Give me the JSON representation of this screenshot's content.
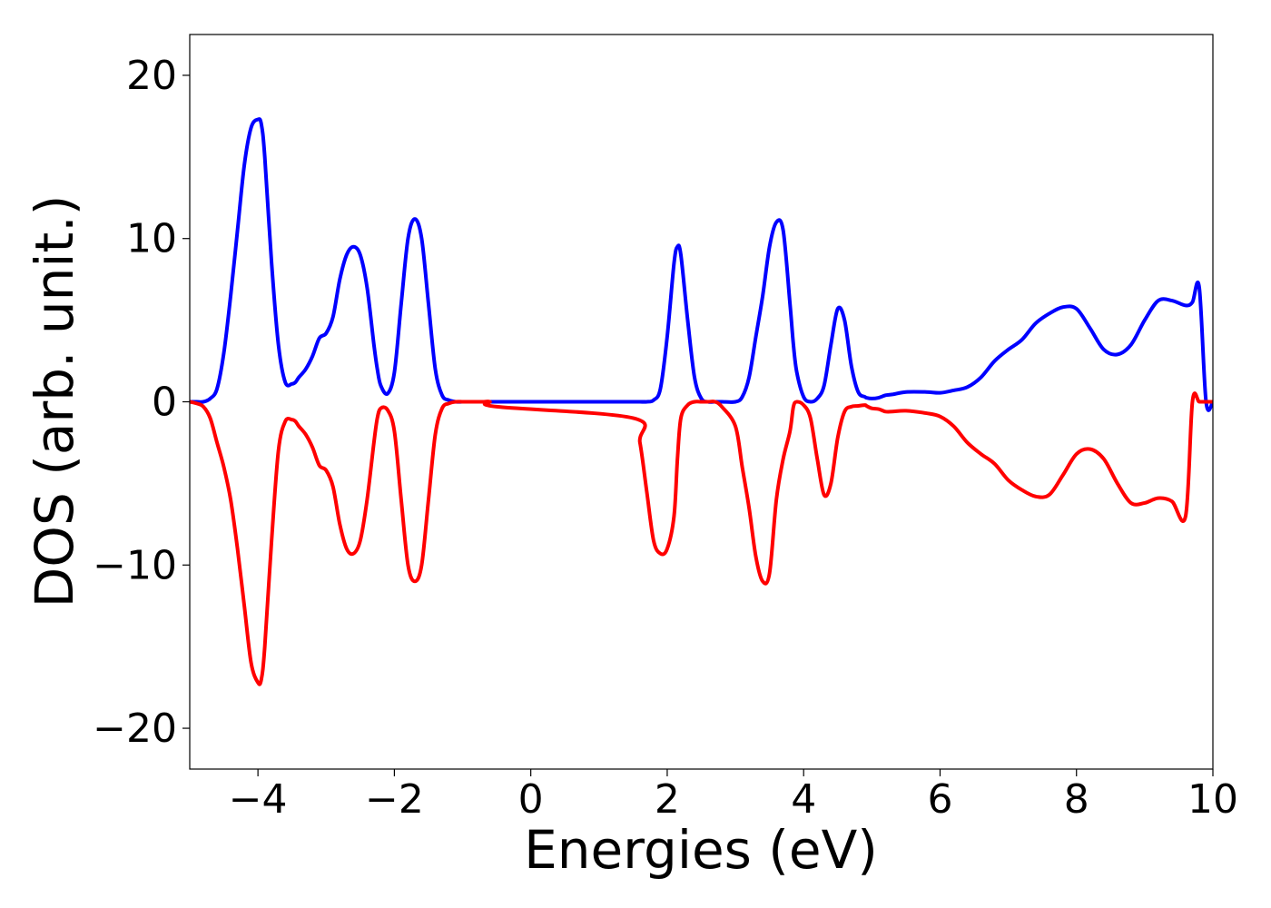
{
  "chart_data": {
    "type": "line",
    "title": "",
    "xlabel": "Energies (eV)",
    "ylabel": "DOS (arb. unit.)",
    "xlim": [
      -5,
      10
    ],
    "ylim": [
      -22.5,
      22.5
    ],
    "xticks": [
      -4,
      -2,
      0,
      2,
      4,
      6,
      8,
      10
    ],
    "yticks": [
      -20,
      -10,
      0,
      10,
      20
    ],
    "xtick_labels": [
      "−4",
      "−2",
      "0",
      "2",
      "4",
      "6",
      "8",
      "10"
    ],
    "ytick_labels": [
      "−20",
      "−10",
      "0",
      "10",
      "20"
    ],
    "grid": false,
    "legend": "none",
    "series": [
      {
        "color": "#0000ff",
        "x": [
          -5.0,
          -4.9,
          -4.8,
          -4.7,
          -4.6,
          -4.5,
          -4.4,
          -4.3,
          -4.2,
          -4.1,
          -4.0,
          -3.95,
          -3.9,
          -3.8,
          -3.7,
          -3.6,
          -3.5,
          -3.45,
          -3.4,
          -3.3,
          -3.2,
          -3.1,
          -3.0,
          -2.9,
          -2.8,
          -2.7,
          -2.6,
          -2.5,
          -2.4,
          -2.3,
          -2.25,
          -2.2,
          -2.1,
          -2.0,
          -1.9,
          -1.8,
          -1.7,
          -1.6,
          -1.5,
          -1.4,
          -1.3,
          -1.2,
          -1.1,
          -1.0,
          -0.9,
          -0.8,
          -0.7,
          -0.6,
          -0.5,
          1.5,
          1.6,
          1.7,
          1.8,
          1.9,
          2.0,
          2.1,
          2.15,
          2.2,
          2.3,
          2.4,
          2.5,
          2.6,
          2.7,
          2.8,
          3.0,
          3.1,
          3.2,
          3.3,
          3.4,
          3.5,
          3.6,
          3.7,
          3.8,
          3.85,
          3.9,
          4.0,
          4.1,
          4.2,
          4.3,
          4.4,
          4.5,
          4.6,
          4.7,
          4.8,
          4.9,
          4.92,
          5.0,
          5.1,
          5.2,
          5.3,
          5.5,
          5.8,
          6.0,
          6.2,
          6.4,
          6.6,
          6.8,
          7.0,
          7.2,
          7.4,
          7.6,
          7.8,
          8.0,
          8.2,
          8.4,
          8.6,
          8.8,
          9.0,
          9.2,
          9.4,
          9.6,
          9.7,
          9.8,
          9.9,
          10.0
        ],
        "y": [
          0.0,
          0.0,
          0.0,
          0.2,
          0.8,
          3.0,
          6.5,
          10.5,
          14.5,
          16.8,
          17.3,
          17.0,
          15.0,
          8.5,
          3.5,
          1.2,
          1.1,
          1.2,
          1.5,
          2.0,
          2.8,
          3.9,
          4.2,
          5.2,
          7.5,
          9.0,
          9.5,
          9.0,
          7.0,
          3.5,
          2.0,
          1.0,
          0.5,
          1.8,
          6.0,
          10.0,
          11.2,
          10.0,
          6.0,
          2.0,
          0.4,
          0.1,
          0.0,
          0.0,
          0.0,
          0.0,
          0.0,
          0.0,
          0.0,
          0.0,
          0.0,
          0.0,
          0.1,
          0.8,
          4.0,
          8.5,
          9.5,
          9.0,
          5.0,
          1.5,
          0.2,
          0.0,
          0.0,
          0.0,
          0.0,
          0.3,
          1.5,
          4.0,
          6.5,
          9.5,
          11.0,
          10.5,
          6.0,
          3.5,
          1.8,
          0.3,
          0.0,
          0.2,
          1.0,
          3.5,
          5.7,
          5.0,
          2.2,
          0.6,
          0.3,
          0.25,
          0.2,
          0.25,
          0.4,
          0.45,
          0.6,
          0.6,
          0.55,
          0.7,
          0.9,
          1.5,
          2.5,
          3.2,
          3.8,
          4.8,
          5.4,
          5.8,
          5.7,
          4.5,
          3.2,
          2.9,
          3.5,
          5.0,
          6.2,
          6.2,
          5.9,
          6.1,
          7.0,
          0.0,
          0.0
        ],
        "name": ""
      },
      {
        "color": "#ff0000",
        "x": [
          -5.0,
          -4.9,
          -4.8,
          -4.7,
          -4.6,
          -4.5,
          -4.4,
          -4.3,
          -4.2,
          -4.1,
          -4.0,
          -3.95,
          -3.9,
          -3.8,
          -3.7,
          -3.6,
          -3.5,
          -3.45,
          -3.4,
          -3.3,
          -3.2,
          -3.1,
          -3.0,
          -2.9,
          -2.8,
          -2.7,
          -2.6,
          -2.5,
          -2.4,
          -2.3,
          -2.25,
          -2.2,
          -2.1,
          -2.0,
          -1.9,
          -1.8,
          -1.7,
          -1.6,
          -1.5,
          -1.4,
          -1.3,
          -1.2,
          -1.1,
          -1.0,
          -0.9,
          -0.8,
          -0.7,
          -0.6,
          -0.5,
          1.5,
          1.6,
          1.7,
          1.8,
          1.9,
          2.0,
          2.1,
          2.15,
          2.2,
          2.3,
          2.4,
          2.5,
          2.6,
          2.7,
          2.8,
          3.0,
          3.1,
          3.2,
          3.3,
          3.4,
          3.5,
          3.6,
          3.7,
          3.8,
          3.85,
          3.9,
          4.0,
          4.1,
          4.2,
          4.3,
          4.4,
          4.5,
          4.6,
          4.7,
          4.8,
          4.9,
          4.92,
          5.0,
          5.1,
          5.2,
          5.3,
          5.5,
          5.8,
          6.0,
          6.2,
          6.4,
          6.6,
          6.8,
          7.0,
          7.2,
          7.4,
          7.6,
          7.8,
          8.0,
          8.2,
          8.4,
          8.6,
          8.8,
          9.0,
          9.2,
          9.4,
          9.6,
          9.7,
          9.8,
          9.9,
          10.0
        ],
        "y": [
          0.0,
          -0.1,
          -0.3,
          -1.0,
          -2.5,
          -4.0,
          -6.0,
          -9.0,
          -12.5,
          -16.0,
          -17.2,
          -17.0,
          -15.0,
          -8.5,
          -3.0,
          -1.2,
          -1.1,
          -1.2,
          -1.5,
          -2.0,
          -2.8,
          -3.9,
          -4.2,
          -5.2,
          -7.5,
          -9.0,
          -9.3,
          -8.5,
          -6.0,
          -2.5,
          -1.0,
          -0.4,
          -0.5,
          -1.8,
          -6.0,
          -10.0,
          -11.0,
          -10.0,
          -6.0,
          -2.0,
          -0.4,
          -0.1,
          0.0,
          0.0,
          0.0,
          0.0,
          0.0,
          0.0,
          -0.3,
          -1.0,
          -2.5,
          -5.5,
          -8.5,
          -9.3,
          -9.0,
          -7.0,
          -3.5,
          -1.0,
          -0.2,
          0.0,
          0.0,
          0.0,
          0.0,
          -0.3,
          -1.5,
          -4.0,
          -6.5,
          -9.5,
          -11.0,
          -10.5,
          -6.0,
          -3.5,
          -1.8,
          -0.3,
          0.0,
          -0.2,
          -1.0,
          -3.5,
          -5.7,
          -5.0,
          -2.2,
          -0.6,
          -0.3,
          -0.25,
          -0.2,
          -0.25,
          -0.4,
          -0.45,
          -0.6,
          -0.6,
          -0.55,
          -0.7,
          -0.9,
          -1.5,
          -2.5,
          -3.2,
          -3.8,
          -4.8,
          -5.4,
          -5.8,
          -5.7,
          -4.5,
          -3.2,
          -2.9,
          -3.5,
          -5.0,
          -6.2,
          -6.2,
          -5.9,
          -6.1,
          -7.0,
          0.0,
          0.0,
          0.0,
          0.0
        ],
        "name": ""
      }
    ]
  }
}
